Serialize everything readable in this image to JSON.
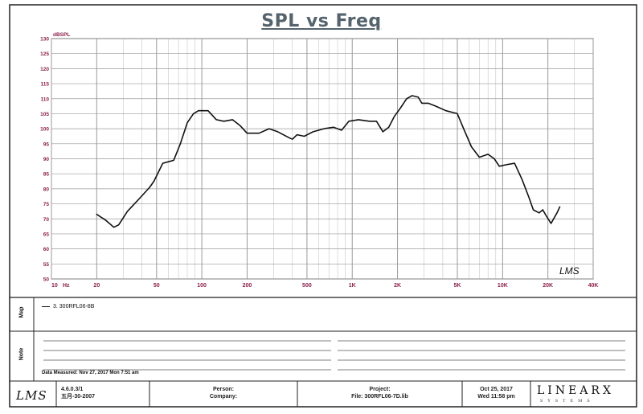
{
  "chart_data": {
    "type": "line",
    "title": "SPL vs Freq",
    "ylabel": "dBSPL",
    "xlabel": "",
    "x_scale": "log",
    "xlim": [
      10,
      40000
    ],
    "ylim": [
      50,
      130
    ],
    "grid": true,
    "y_ticks": [
      "50",
      "55",
      "60",
      "65",
      "70",
      "75",
      "80",
      "85",
      "90",
      "95",
      "100",
      "105",
      "110",
      "115",
      "120",
      "125",
      "130"
    ],
    "x_ticks": [
      {
        "value": 10,
        "label": "10"
      },
      {
        "value": 20,
        "label": "20"
      },
      {
        "value": 50,
        "label": "50"
      },
      {
        "value": 100,
        "label": "100"
      },
      {
        "value": 200,
        "label": "200"
      },
      {
        "value": 500,
        "label": "500"
      },
      {
        "value": 1000,
        "label": "1K"
      },
      {
        "value": 2000,
        "label": "2K"
      },
      {
        "value": 5000,
        "label": "5K"
      },
      {
        "value": 10000,
        "label": "10K"
      },
      {
        "value": 20000,
        "label": "20K"
      },
      {
        "value": 40000,
        "label": "40K"
      }
    ],
    "x_unit_label": "Hz",
    "series": [
      {
        "name": "3. 300RFL06-8B",
        "color": "#111111",
        "points": [
          [
            20,
            71.5
          ],
          [
            23,
            69.5
          ],
          [
            26,
            67.2
          ],
          [
            28,
            68
          ],
          [
            32,
            72.5
          ],
          [
            38,
            76.5
          ],
          [
            45,
            80.5
          ],
          [
            48,
            82.5
          ],
          [
            55,
            88.5
          ],
          [
            60,
            89
          ],
          [
            65,
            89.5
          ],
          [
            72,
            95
          ],
          [
            80,
            102
          ],
          [
            88,
            105
          ],
          [
            95,
            106
          ],
          [
            110,
            106
          ],
          [
            125,
            103
          ],
          [
            140,
            102.5
          ],
          [
            160,
            103
          ],
          [
            180,
            101
          ],
          [
            200,
            98.5
          ],
          [
            240,
            98.5
          ],
          [
            280,
            100
          ],
          [
            320,
            99
          ],
          [
            380,
            97
          ],
          [
            400,
            96.5
          ],
          [
            430,
            98
          ],
          [
            480,
            97.5
          ],
          [
            550,
            99
          ],
          [
            650,
            100
          ],
          [
            750,
            100.5
          ],
          [
            850,
            99.5
          ],
          [
            950,
            102.5
          ],
          [
            1100,
            103
          ],
          [
            1300,
            102.5
          ],
          [
            1450,
            102.5
          ],
          [
            1600,
            99
          ],
          [
            1750,
            100.5
          ],
          [
            1900,
            104
          ],
          [
            2100,
            107
          ],
          [
            2300,
            110
          ],
          [
            2500,
            111
          ],
          [
            2750,
            110.5
          ],
          [
            2900,
            108.5
          ],
          [
            3200,
            108.5
          ],
          [
            3600,
            107.5
          ],
          [
            4200,
            106
          ],
          [
            5000,
            105
          ],
          [
            5500,
            100
          ],
          [
            6200,
            94
          ],
          [
            7000,
            90.5
          ],
          [
            8000,
            91.5
          ],
          [
            8800,
            90
          ],
          [
            9500,
            87.5
          ],
          [
            10500,
            88
          ],
          [
            12000,
            88.5
          ],
          [
            13500,
            83
          ],
          [
            15000,
            77
          ],
          [
            16000,
            73
          ],
          [
            17500,
            72
          ],
          [
            18500,
            73
          ],
          [
            19500,
            71
          ],
          [
            21000,
            68.5
          ],
          [
            23000,
            72
          ],
          [
            24000,
            74
          ]
        ]
      }
    ]
  },
  "legend": {
    "entry": "3. 300RFL06-8B"
  },
  "side_labels": {
    "map": "Map",
    "note": "Note"
  },
  "notes": {
    "measured": "Data Measured: Nov 27, 2017 Mon 7:51 am"
  },
  "footer": {
    "logo": "LMS",
    "version": "4.6.0.3/1",
    "version_date": "五月-30-2007",
    "person": "Person:",
    "company": "Company:",
    "project": "Project:",
    "file": "File: 300RFL06-7D.lib",
    "date1": "Oct 25, 2017",
    "date2": "Wed 11:58 pm",
    "brand": "LINEARX",
    "brand_sub": "SYSTEMS"
  },
  "watermark": "LMS",
  "colors": {
    "grid": "#9a9a9a",
    "grid_minor": "#c6c6c6",
    "tick_label": "#8a1f4a",
    "curve": "#111111",
    "title": "#55636d"
  }
}
